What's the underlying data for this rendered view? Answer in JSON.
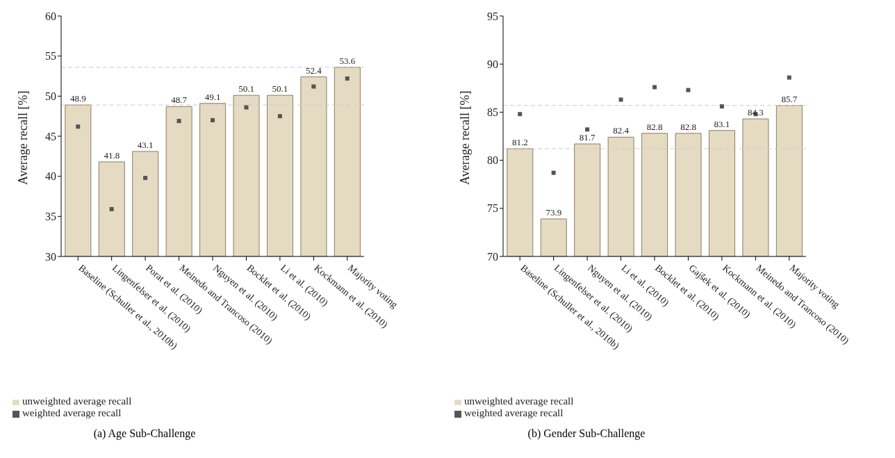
{
  "chart_data": [
    {
      "type": "bar",
      "title": "(a) Age Sub-Challenge",
      "ylabel": "Average recall [%]",
      "categories": [
        "Baseline (Schuller et al., 2010b)",
        "Lingenfelser et al. (2010)",
        "Porat et al. (2010)",
        "Meinedo and Trancoso (2010)",
        "Nguyen et al. (2010)",
        "Bocklet et al. (2010)",
        "Li et al. (2010)",
        "Kockmann et al. (2010)",
        "Majority voting"
      ],
      "series": [
        {
          "name": "unweighted average recall",
          "type": "bar",
          "color": "#e5dbc3",
          "values": [
            48.9,
            41.8,
            43.1,
            48.7,
            49.1,
            50.1,
            50.1,
            52.4,
            53.6
          ],
          "value_labels": [
            "48.9",
            "41.8",
            "43.1",
            "48.7",
            "49.1",
            "50.1",
            "50.1",
            "52.4",
            "53.6"
          ]
        },
        {
          "name": "weighted average recall",
          "type": "scatter",
          "marker": "square",
          "color": "#555555",
          "values": [
            46.2,
            35.9,
            39.8,
            46.9,
            47.0,
            48.6,
            47.5,
            51.2,
            52.2
          ]
        }
      ],
      "ylim": [
        30,
        60
      ],
      "yticks": [
        30,
        35,
        40,
        45,
        50,
        55,
        60
      ],
      "grid": false,
      "legend": "bottom left",
      "ref_lines": [
        {
          "axis": "y",
          "value": 48.9,
          "color": "#cccccc",
          "line_style": "dashed"
        },
        {
          "axis": "y",
          "value": 53.6,
          "color": "#cccccc",
          "line_style": "dashed"
        }
      ]
    },
    {
      "type": "bar",
      "title": "(b) Gender Sub-Challenge",
      "ylabel": "Average recall [%]",
      "categories": [
        "Baseline (Schuller et al., 2010b)",
        "Lingenfelser et al. (2010)",
        "Nguyen et al. (2010)",
        "Li et al. (2010)",
        "Bocklet et al. (2010)",
        "Gajšek et al. (2010)",
        "Kockmann et al. (2010)",
        "Meinedo and Trancoso (2010)",
        "Majority voting"
      ],
      "series": [
        {
          "name": "unweighted average recall",
          "type": "bar",
          "color": "#e5dbc3",
          "values": [
            81.2,
            73.9,
            81.7,
            82.4,
            82.8,
            82.8,
            83.1,
            84.3,
            85.7
          ],
          "value_labels": [
            "81.2",
            "73.9",
            "81.7",
            "82.4",
            "82.8",
            "82.8",
            "83.1",
            "84.3",
            "85.7"
          ]
        },
        {
          "name": "weighted average recall",
          "type": "scatter",
          "marker": "square",
          "color": "#555555",
          "values": [
            84.8,
            78.7,
            83.2,
            86.3,
            87.6,
            87.3,
            85.6,
            84.8,
            88.6
          ]
        }
      ],
      "ylim": [
        70,
        95
      ],
      "yticks": [
        70,
        75,
        80,
        85,
        90,
        95
      ],
      "grid": false,
      "legend": "bottom left",
      "ref_lines": [
        {
          "axis": "y",
          "value": 81.2,
          "color": "#cccccc",
          "line_style": "dashed"
        },
        {
          "axis": "y",
          "value": 85.7,
          "color": "#cccccc",
          "line_style": "dashed"
        }
      ]
    }
  ]
}
